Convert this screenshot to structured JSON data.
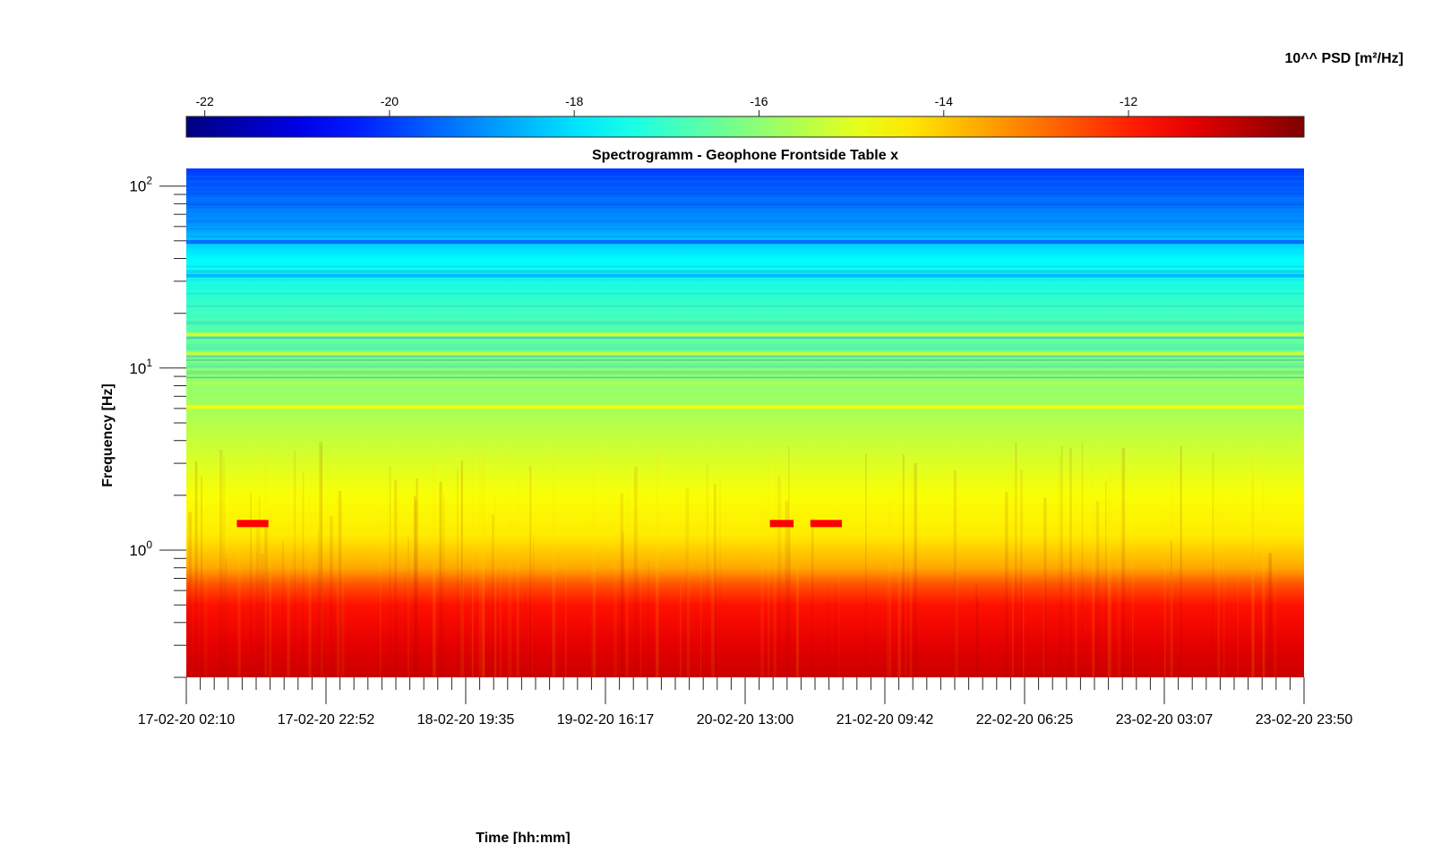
{
  "chart_data": {
    "type": "heatmap",
    "title": "Spectrogramm - Geophone Frontside Table x",
    "xlabel": "Time [hh:mm]",
    "ylabel": "Frequency [Hz]",
    "colorbar_label": "10^^ PSD [m²/Hz]",
    "colormap": "jet",
    "colorbar_range": [
      -22.2,
      -10.1
    ],
    "colorbar_ticks": [
      {
        "value": -22,
        "label": "-22"
      },
      {
        "value": -20,
        "label": "-20"
      },
      {
        "value": -18,
        "label": "-18"
      },
      {
        "value": -16,
        "label": "-16"
      },
      {
        "value": -14,
        "label": "-14"
      },
      {
        "value": -12,
        "label": "-12"
      }
    ],
    "y_scale": "log",
    "ylim": [
      0.2,
      125
    ],
    "y_ticks": [
      {
        "value": 1,
        "base": "10",
        "exp": "0"
      },
      {
        "value": 10,
        "base": "10",
        "exp": "1"
      },
      {
        "value": 100,
        "base": "10",
        "exp": "2"
      }
    ],
    "xlim": [
      "17-02-20 02:10",
      "23-02-20 23:50"
    ],
    "x_ticks": [
      "17-02-20 02:10",
      "17-02-20 22:52",
      "18-02-20 19:35",
      "19-02-20 16:17",
      "20-02-20 13:00",
      "21-02-20 09:42",
      "22-02-20 06:25",
      "23-02-20 03:07",
      "23-02-20 23:50"
    ],
    "x_minor_ticks_per_major": 10,
    "psd_profile_by_frequency": [
      {
        "freq": 0.2,
        "psd": -11.0
      },
      {
        "freq": 0.3,
        "psd": -11.3
      },
      {
        "freq": 0.5,
        "psd": -11.8
      },
      {
        "freq": 0.65,
        "psd": -12.6
      },
      {
        "freq": 0.8,
        "psd": -13.6
      },
      {
        "freq": 1.2,
        "psd": -14.4
      },
      {
        "freq": 2.0,
        "psd": -14.7
      },
      {
        "freq": 3.5,
        "psd": -15.2
      },
      {
        "freq": 6.0,
        "psd": -15.7
      },
      {
        "freq": 10.0,
        "psd": -16.1
      },
      {
        "freq": 20.0,
        "psd": -16.9
      },
      {
        "freq": 40.0,
        "psd": -17.7
      },
      {
        "freq": 60.0,
        "psd": -18.9
      },
      {
        "freq": 125.0,
        "psd": -20.0
      }
    ],
    "spectral_lines_hz": [
      {
        "freq": 6.1,
        "psd": -14.6
      },
      {
        "freq": 15.2,
        "psd": -15.0
      },
      {
        "freq": 12.0,
        "psd": -15.3
      },
      {
        "freq": 8.2,
        "psd": -15.6
      },
      {
        "freq": 32.0,
        "psd": -18.6
      },
      {
        "freq": 49.0,
        "psd": -19.5
      }
    ],
    "events": [
      {
        "start": "17-02-20 09:40",
        "end": "17-02-20 14:20",
        "freq": 1.4,
        "psd": -11.6
      },
      {
        "start": "20-02-20 16:40",
        "end": "20-02-20 20:10",
        "freq": 1.4,
        "psd": -11.6
      },
      {
        "start": "20-02-20 22:40",
        "end": "21-02-20 03:20",
        "freq": 1.4,
        "psd": -11.6
      }
    ]
  }
}
